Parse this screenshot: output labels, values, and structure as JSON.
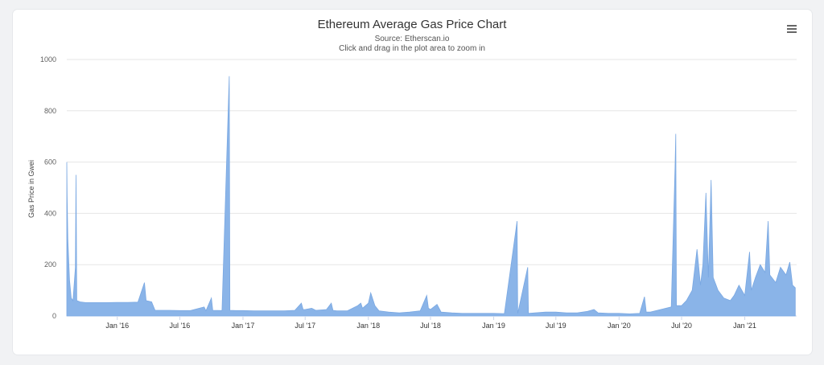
{
  "title": "Ethereum Average Gas Price Chart",
  "subtitle_source": "Source: Etherscan.io",
  "subtitle_hint": "Click and drag in the plot area to zoom in",
  "menu_icon": "hamburger-menu-icon",
  "colors": {
    "series": "#8ab4e8",
    "grid": "#e6e6e6",
    "axis": "#ccd6eb"
  },
  "chart_data": {
    "type": "area",
    "ylabel": "Gas Price in Gwei",
    "ylim": [
      0,
      1000
    ],
    "yticks": [
      0,
      200,
      400,
      600,
      800,
      1000
    ],
    "xlim": [
      "2015-08-07",
      "2021-06-01"
    ],
    "xticks": [
      {
        "date": "2016-01-01",
        "label": "Jan '16"
      },
      {
        "date": "2016-07-01",
        "label": "Jul '16"
      },
      {
        "date": "2017-01-01",
        "label": "Jan '17"
      },
      {
        "date": "2017-07-01",
        "label": "Jul '17"
      },
      {
        "date": "2018-01-01",
        "label": "Jan '18"
      },
      {
        "date": "2018-07-01",
        "label": "Jul '18"
      },
      {
        "date": "2019-01-01",
        "label": "Jan '19"
      },
      {
        "date": "2019-07-01",
        "label": "Jul '19"
      },
      {
        "date": "2020-01-01",
        "label": "Jan '20"
      },
      {
        "date": "2020-07-01",
        "label": "Jul '20"
      },
      {
        "date": "2021-01-01",
        "label": "Jan '21"
      }
    ],
    "series": [
      {
        "values": [
          [
            "2015-08-07",
            600
          ],
          [
            "2015-08-08",
            470
          ],
          [
            "2015-08-10",
            300
          ],
          [
            "2015-08-15",
            140
          ],
          [
            "2015-08-20",
            70
          ],
          [
            "2015-08-25",
            60
          ],
          [
            "2015-09-01",
            190
          ],
          [
            "2015-09-03",
            550
          ],
          [
            "2015-09-05",
            60
          ],
          [
            "2015-09-15",
            55
          ],
          [
            "2015-10-01",
            52
          ],
          [
            "2015-11-01",
            52
          ],
          [
            "2015-12-01",
            52
          ],
          [
            "2016-01-01",
            53
          ],
          [
            "2016-02-01",
            53
          ],
          [
            "2016-03-01",
            54
          ],
          [
            "2016-03-20",
            130
          ],
          [
            "2016-03-25",
            60
          ],
          [
            "2016-04-10",
            55
          ],
          [
            "2016-04-20",
            22
          ],
          [
            "2016-06-01",
            22
          ],
          [
            "2016-07-01",
            21
          ],
          [
            "2016-08-01",
            21
          ],
          [
            "2016-09-10",
            35
          ],
          [
            "2016-09-15",
            20
          ],
          [
            "2016-10-01",
            70
          ],
          [
            "2016-10-05",
            22
          ],
          [
            "2016-11-01",
            21
          ],
          [
            "2016-11-22",
            935
          ],
          [
            "2016-11-24",
            22
          ],
          [
            "2016-12-10",
            21
          ],
          [
            "2017-01-01",
            21
          ],
          [
            "2017-02-01",
            20
          ],
          [
            "2017-03-01",
            20
          ],
          [
            "2017-04-01",
            20
          ],
          [
            "2017-05-01",
            20
          ],
          [
            "2017-06-01",
            22
          ],
          [
            "2017-06-20",
            50
          ],
          [
            "2017-06-25",
            25
          ],
          [
            "2017-07-01",
            25
          ],
          [
            "2017-07-20",
            30
          ],
          [
            "2017-08-01",
            22
          ],
          [
            "2017-09-01",
            25
          ],
          [
            "2017-09-15",
            50
          ],
          [
            "2017-09-20",
            22
          ],
          [
            "2017-10-01",
            20
          ],
          [
            "2017-11-01",
            20
          ],
          [
            "2017-12-01",
            40
          ],
          [
            "2017-12-10",
            50
          ],
          [
            "2017-12-15",
            30
          ],
          [
            "2018-01-01",
            50
          ],
          [
            "2018-01-08",
            90
          ],
          [
            "2018-01-20",
            40
          ],
          [
            "2018-02-01",
            20
          ],
          [
            "2018-03-01",
            15
          ],
          [
            "2018-04-01",
            12
          ],
          [
            "2018-05-01",
            15
          ],
          [
            "2018-06-01",
            20
          ],
          [
            "2018-06-20",
            80
          ],
          [
            "2018-06-25",
            30
          ],
          [
            "2018-07-01",
            25
          ],
          [
            "2018-07-20",
            45
          ],
          [
            "2018-08-01",
            15
          ],
          [
            "2018-09-01",
            12
          ],
          [
            "2018-10-01",
            10
          ],
          [
            "2018-11-01",
            10
          ],
          [
            "2018-12-01",
            10
          ],
          [
            "2019-01-01",
            10
          ],
          [
            "2019-02-01",
            9
          ],
          [
            "2019-03-10",
            370
          ],
          [
            "2019-03-12",
            10
          ],
          [
            "2019-04-10",
            190
          ],
          [
            "2019-04-12",
            10
          ],
          [
            "2019-05-01",
            12
          ],
          [
            "2019-06-01",
            15
          ],
          [
            "2019-07-01",
            15
          ],
          [
            "2019-08-01",
            12
          ],
          [
            "2019-09-01",
            12
          ],
          [
            "2019-10-01",
            18
          ],
          [
            "2019-10-20",
            25
          ],
          [
            "2019-11-01",
            12
          ],
          [
            "2019-12-01",
            10
          ],
          [
            "2020-01-01",
            10
          ],
          [
            "2020-02-01",
            8
          ],
          [
            "2020-03-01",
            10
          ],
          [
            "2020-03-15",
            75
          ],
          [
            "2020-03-20",
            15
          ],
          [
            "2020-04-01",
            15
          ],
          [
            "2020-05-01",
            25
          ],
          [
            "2020-06-01",
            35
          ],
          [
            "2020-06-12",
            580
          ],
          [
            "2020-06-14",
            710
          ],
          [
            "2020-06-16",
            40
          ],
          [
            "2020-07-01",
            40
          ],
          [
            "2020-07-15",
            60
          ],
          [
            "2020-08-01",
            100
          ],
          [
            "2020-08-15",
            260
          ],
          [
            "2020-08-25",
            120
          ],
          [
            "2020-09-01",
            200
          ],
          [
            "2020-09-10",
            480
          ],
          [
            "2020-09-17",
            150
          ],
          [
            "2020-09-25",
            530
          ],
          [
            "2020-10-01",
            150
          ],
          [
            "2020-10-15",
            100
          ],
          [
            "2020-11-01",
            70
          ],
          [
            "2020-11-20",
            60
          ],
          [
            "2020-12-01",
            80
          ],
          [
            "2020-12-15",
            120
          ],
          [
            "2021-01-01",
            80
          ],
          [
            "2021-01-15",
            250
          ],
          [
            "2021-01-20",
            100
          ],
          [
            "2021-02-01",
            150
          ],
          [
            "2021-02-15",
            200
          ],
          [
            "2021-03-01",
            170
          ],
          [
            "2021-03-10",
            370
          ],
          [
            "2021-03-15",
            160
          ],
          [
            "2021-04-01",
            130
          ],
          [
            "2021-04-15",
            190
          ],
          [
            "2021-05-01",
            160
          ],
          [
            "2021-05-12",
            210
          ],
          [
            "2021-05-20",
            120
          ],
          [
            "2021-05-28",
            110
          ]
        ]
      }
    ],
    "grid": true,
    "legend": "none"
  }
}
